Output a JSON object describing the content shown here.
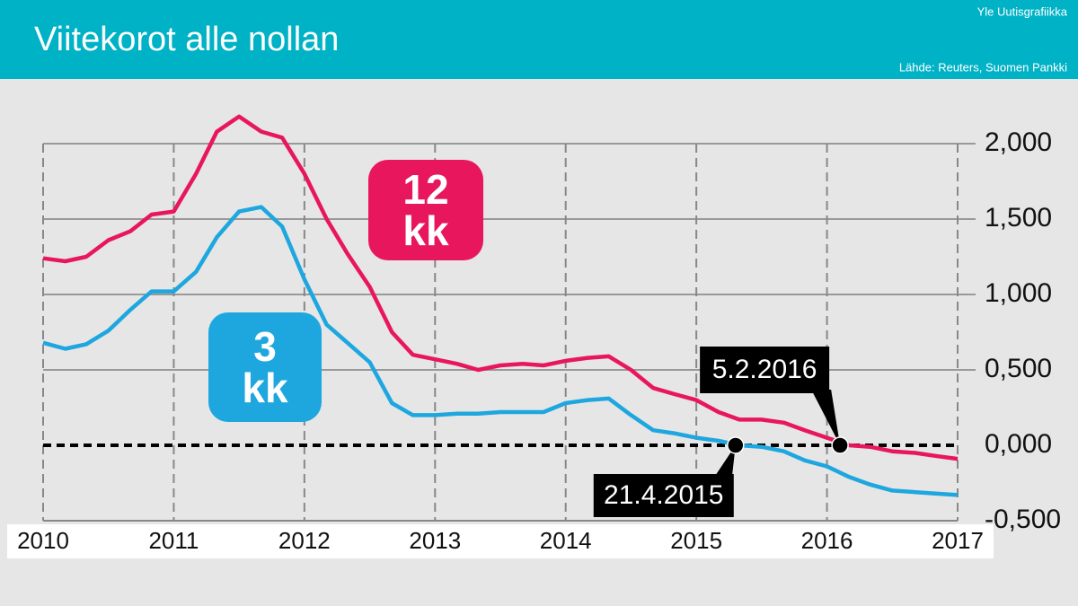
{
  "chart_data": {
    "type": "line",
    "title": "Viitekorot alle nollan",
    "credit": "Yle Uutisgrafiikka",
    "source": "Lähde: Reuters, Suomen Pankki",
    "x": [
      2010.0,
      2010.17,
      2010.33,
      2010.5,
      2010.67,
      2010.83,
      2011.0,
      2011.17,
      2011.33,
      2011.5,
      2011.67,
      2011.83,
      2012.0,
      2012.17,
      2012.33,
      2012.5,
      2012.67,
      2012.83,
      2013.0,
      2013.17,
      2013.33,
      2013.5,
      2013.67,
      2013.83,
      2014.0,
      2014.17,
      2014.33,
      2014.5,
      2014.67,
      2014.83,
      2015.0,
      2015.17,
      2015.33,
      2015.5,
      2015.67,
      2015.83,
      2016.0,
      2016.17,
      2016.33,
      2016.5,
      2016.67,
      2016.83,
      2017.0
    ],
    "series": [
      {
        "name": "12 kk",
        "color": "#e8175d",
        "values": [
          1.24,
          1.22,
          1.25,
          1.36,
          1.42,
          1.53,
          1.55,
          1.8,
          2.08,
          2.18,
          2.08,
          2.04,
          1.8,
          1.5,
          1.27,
          1.05,
          0.75,
          0.6,
          0.57,
          0.54,
          0.5,
          0.53,
          0.54,
          0.53,
          0.56,
          0.58,
          0.59,
          0.5,
          0.38,
          0.34,
          0.3,
          0.22,
          0.17,
          0.17,
          0.15,
          0.1,
          0.05,
          0.0,
          -0.01,
          -0.04,
          -0.05,
          -0.07,
          -0.09
        ]
      },
      {
        "name": "3 kk",
        "color": "#1ea7df",
        "values": [
          0.68,
          0.64,
          0.67,
          0.76,
          0.9,
          1.02,
          1.02,
          1.15,
          1.38,
          1.55,
          1.58,
          1.45,
          1.1,
          0.8,
          0.68,
          0.55,
          0.28,
          0.2,
          0.2,
          0.21,
          0.21,
          0.22,
          0.22,
          0.22,
          0.28,
          0.3,
          0.31,
          0.2,
          0.1,
          0.08,
          0.05,
          0.03,
          0.0,
          -0.01,
          -0.04,
          -0.1,
          -0.14,
          -0.21,
          -0.26,
          -0.3,
          -0.31,
          -0.32,
          -0.33
        ]
      }
    ],
    "xlim": [
      2010,
      2017
    ],
    "xticks": [
      2010,
      2011,
      2012,
      2013,
      2014,
      2015,
      2016,
      2017
    ],
    "ylim": [
      -0.5,
      2.0
    ],
    "yticks": [
      {
        "value": 2.0,
        "label": "2,000"
      },
      {
        "value": 1.5,
        "label": "1,500"
      },
      {
        "value": 1.0,
        "label": "1,000"
      },
      {
        "value": 0.5,
        "label": "0,500"
      },
      {
        "value": 0.0,
        "label": "0,000"
      },
      {
        "value": -0.5,
        "label": "-0,500"
      }
    ],
    "reference_line": 0,
    "annotations": [
      {
        "text": "21.4.2015",
        "x": 2015.3,
        "y": 0
      },
      {
        "text": "5.2.2016",
        "x": 2016.1,
        "y": 0
      }
    ],
    "grid": true
  }
}
